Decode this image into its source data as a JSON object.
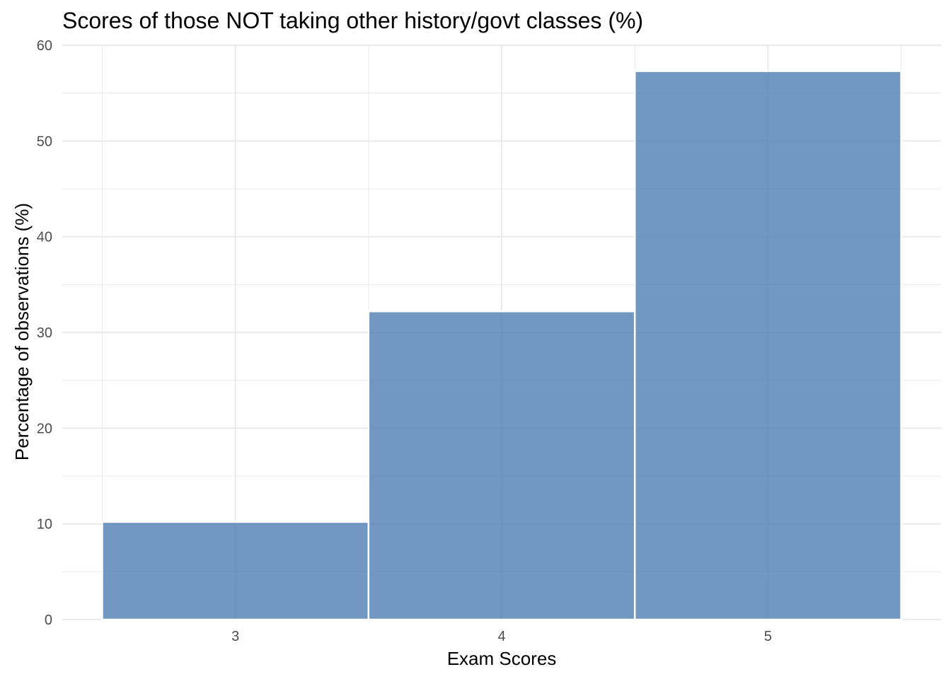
{
  "chart_data": {
    "type": "bar",
    "title": "Scores of those NOT taking other history/govt classes (%)",
    "xlabel": "Exam Scores",
    "ylabel": "Percentage of observations (%)",
    "categories": [
      "3",
      "4",
      "5"
    ],
    "values": [
      10.2,
      32.2,
      57.3
    ],
    "ylim": [
      0,
      60
    ],
    "yticks": [
      "0",
      "10",
      "20",
      "30",
      "40",
      "50",
      "60"
    ],
    "bar_color": "#4a7bb0",
    "bar_opacity": 0.78,
    "grid": true,
    "legend": "none"
  }
}
